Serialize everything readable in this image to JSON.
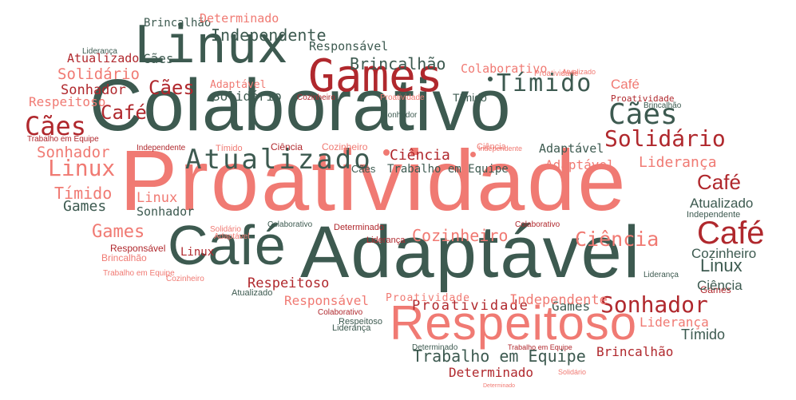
{
  "palette": {
    "dark": "#3d5a50",
    "red": "#b0282d",
    "salmon": "#f07a73"
  },
  "words": [
    {
      "text": "Proatividade"
    },
    {
      "text": "Colaborativo"
    },
    {
      "text": "Adaptável"
    },
    {
      "text": "Respeitoso"
    },
    {
      "text": "Linux"
    },
    {
      "text": "Café"
    },
    {
      "text": "Games"
    },
    {
      "text": "Tímido"
    },
    {
      "text": "Atualizado"
    },
    {
      "text": "Ciência"
    },
    {
      "text": "Sonhador"
    },
    {
      "text": "Solidário"
    },
    {
      "text": "Cães"
    },
    {
      "text": "Cozinheiro"
    },
    {
      "text": "Trabalho em Equipe"
    },
    {
      "text": "Independente"
    },
    {
      "text": "Brincalhão"
    },
    {
      "text": "Determinado"
    },
    {
      "text": "Responsável"
    },
    {
      "text": "Liderança"
    }
  ]
}
